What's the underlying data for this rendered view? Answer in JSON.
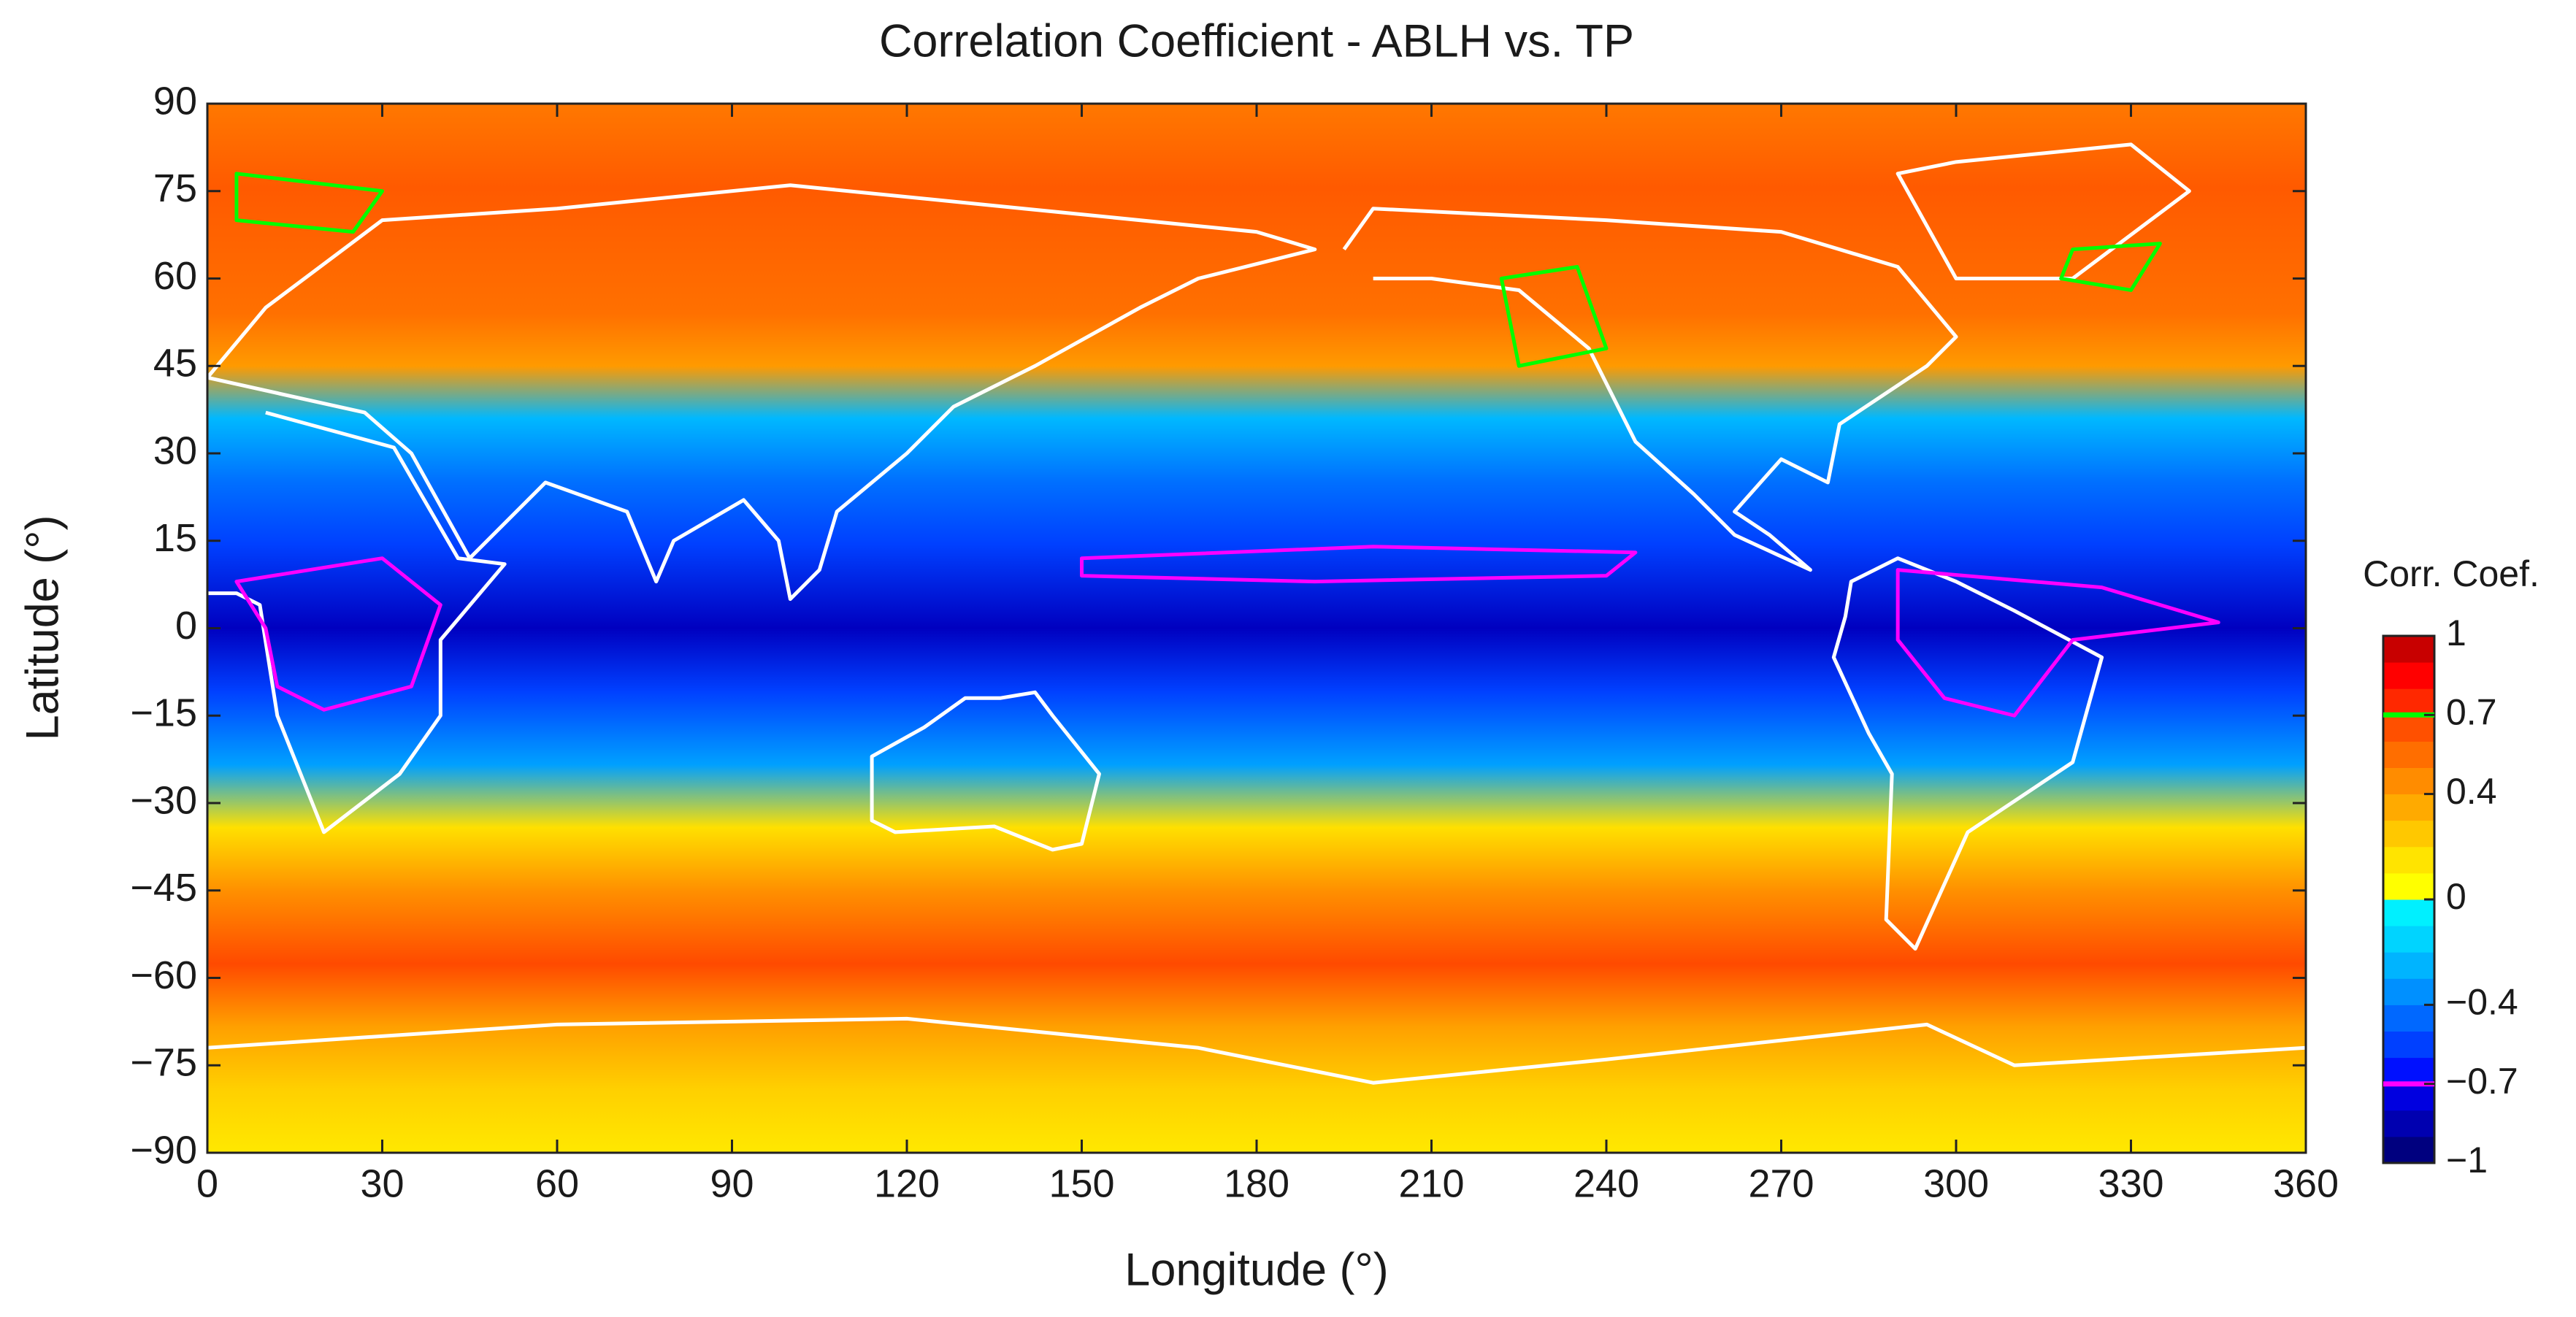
{
  "chart_data": {
    "type": "contour-map",
    "title": "Correlation Coefficient - ABLH vs. TP",
    "xlabel": "Longitude (°)",
    "ylabel": "Latitude (°)",
    "xlim": [
      0,
      360
    ],
    "xticks": [
      0,
      30,
      60,
      90,
      120,
      150,
      180,
      210,
      240,
      270,
      300,
      330,
      360
    ],
    "ylim": [
      -90,
      90
    ],
    "yticks": [
      {
        "value": -90,
        "label": "−90"
      },
      {
        "value": -75,
        "label": "−75"
      },
      {
        "value": -60,
        "label": "−60"
      },
      {
        "value": -45,
        "label": "−45"
      },
      {
        "value": -30,
        "label": "−30"
      },
      {
        "value": -15,
        "label": "−15"
      },
      0,
      15,
      30,
      45,
      60,
      75,
      90
    ],
    "colorbar": {
      "label": "Corr. Coef.",
      "lim": [
        -1,
        1
      ],
      "ticks": [
        {
          "value": -1,
          "label": "−1"
        },
        {
          "value": -0.7,
          "label": "−0.7"
        },
        {
          "value": -0.4,
          "label": "−0.4"
        },
        0,
        0.4,
        0.7,
        1
      ],
      "colors": [
        "#00007f",
        "#0000b0",
        "#0000e0",
        "#0010ff",
        "#0040ff",
        "#0068ff",
        "#0090ff",
        "#00b4ff",
        "#00d4ff",
        "#00f0ff",
        "#ffff00",
        "#ffe400",
        "#ffc800",
        "#ffaa00",
        "#ff8c00",
        "#ff6e00",
        "#ff5000",
        "#ff2800",
        "#ff0000",
        "#c80000"
      ],
      "contour_levels": [
        {
          "value": 0.7,
          "color": "#00ff00"
        },
        {
          "value": -0.7,
          "color": "#ff00ff"
        }
      ]
    }
  }
}
